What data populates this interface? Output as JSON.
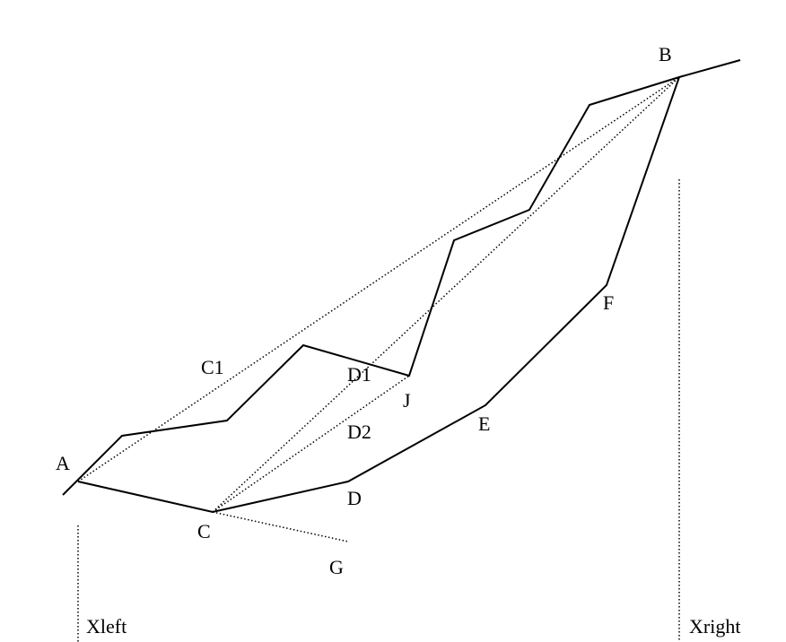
{
  "labels": {
    "A": "A",
    "B": "B",
    "C": "C",
    "C1": "C1",
    "D": "D",
    "D1": "D1",
    "D2": "D2",
    "E": "E",
    "F": "F",
    "G": "G",
    "J": "J",
    "xleft": "Xleft",
    "xright": "Xright"
  }
}
